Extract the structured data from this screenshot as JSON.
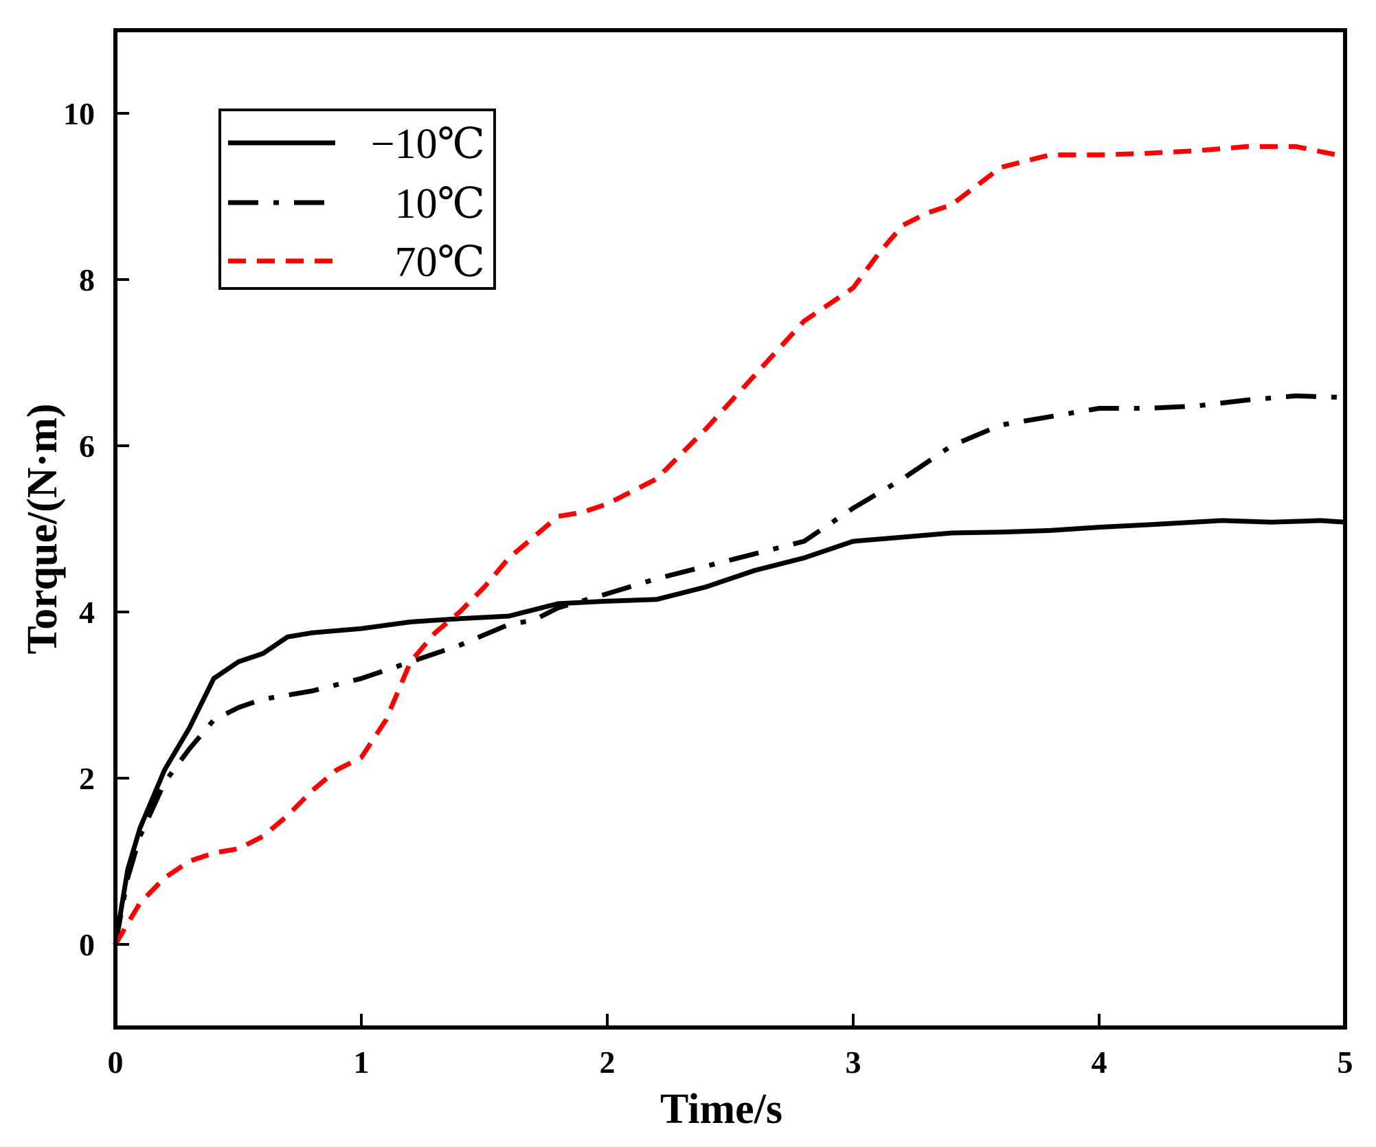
{
  "chart_data": {
    "type": "line",
    "title": "",
    "xlabel": "Time/s",
    "ylabel": "Torque/(N·m)",
    "xlim": [
      0,
      5
    ],
    "ylim": [
      -1,
      11
    ],
    "xticks": [
      0,
      1,
      2,
      3,
      4,
      5
    ],
    "xtick_labels": [
      "0",
      "1",
      "2",
      "3",
      "4",
      "5"
    ],
    "yticks": [
      0,
      2,
      4,
      6,
      8,
      10
    ],
    "ytick_labels": [
      "0",
      "2",
      "4",
      "6",
      "8",
      "10"
    ],
    "grid": false,
    "legend_position": "top-left",
    "series": [
      {
        "name": "−10℃",
        "color": "#000000",
        "style": "solid",
        "x": [
          0,
          0.05,
          0.1,
          0.2,
          0.3,
          0.4,
          0.5,
          0.6,
          0.7,
          0.8,
          1.0,
          1.2,
          1.4,
          1.6,
          1.8,
          2.0,
          2.2,
          2.4,
          2.6,
          2.8,
          3.0,
          3.2,
          3.4,
          3.6,
          3.8,
          4.0,
          4.2,
          4.5,
          4.7,
          4.9,
          5.0
        ],
        "y": [
          0,
          0.9,
          1.4,
          2.1,
          2.6,
          3.2,
          3.4,
          3.5,
          3.7,
          3.75,
          3.8,
          3.88,
          3.92,
          3.95,
          4.1,
          4.13,
          4.15,
          4.3,
          4.5,
          4.65,
          4.85,
          4.9,
          4.95,
          4.96,
          4.98,
          5.02,
          5.05,
          5.1,
          5.08,
          5.1,
          5.08
        ]
      },
      {
        "name": "10℃",
        "color": "#000000",
        "style": "dashdot",
        "x": [
          0,
          0.05,
          0.1,
          0.2,
          0.3,
          0.4,
          0.5,
          0.6,
          0.8,
          1.0,
          1.2,
          1.4,
          1.6,
          1.7,
          1.8,
          2.0,
          2.2,
          2.4,
          2.6,
          2.8,
          3.0,
          3.2,
          3.4,
          3.6,
          3.8,
          4.0,
          4.2,
          4.4,
          4.6,
          4.8,
          5.0
        ],
        "y": [
          0,
          0.8,
          1.3,
          1.95,
          2.35,
          2.7,
          2.85,
          2.95,
          3.05,
          3.2,
          3.4,
          3.6,
          3.85,
          3.9,
          4.05,
          4.22,
          4.4,
          4.55,
          4.7,
          4.85,
          5.25,
          5.6,
          6.0,
          6.25,
          6.35,
          6.45,
          6.45,
          6.48,
          6.55,
          6.6,
          6.58
        ]
      },
      {
        "name": "70℃",
        "color": "#ff0000",
        "style": "dashed",
        "x": [
          0,
          0.1,
          0.2,
          0.3,
          0.4,
          0.5,
          0.6,
          0.7,
          0.8,
          0.9,
          1.0,
          1.1,
          1.2,
          1.3,
          1.4,
          1.5,
          1.6,
          1.7,
          1.8,
          1.9,
          2.0,
          2.1,
          2.2,
          2.4,
          2.6,
          2.8,
          3.0,
          3.1,
          3.2,
          3.3,
          3.4,
          3.6,
          3.8,
          4.0,
          4.2,
          4.4,
          4.6,
          4.8,
          5.0
        ],
        "y": [
          0,
          0.5,
          0.8,
          1.0,
          1.1,
          1.15,
          1.3,
          1.55,
          1.85,
          2.1,
          2.25,
          2.7,
          3.4,
          3.75,
          4.0,
          4.3,
          4.65,
          4.9,
          5.15,
          5.2,
          5.3,
          5.45,
          5.6,
          6.2,
          6.85,
          7.5,
          7.9,
          8.3,
          8.65,
          8.8,
          8.9,
          9.35,
          9.5,
          9.5,
          9.52,
          9.55,
          9.6,
          9.6,
          9.48
        ]
      }
    ]
  }
}
